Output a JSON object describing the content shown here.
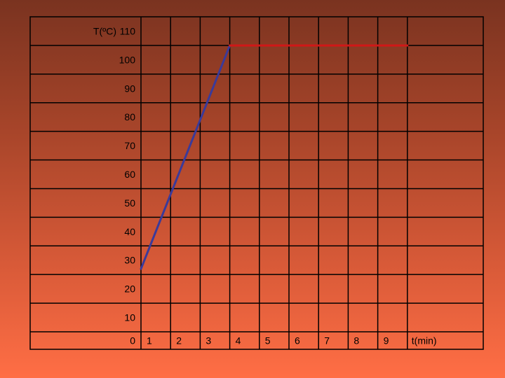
{
  "chart_data": {
    "type": "line",
    "ylabel": "T(ºC)",
    "xlabel": "t(min)",
    "y_ticks": [
      "110",
      "100",
      "90",
      "80",
      "70",
      "60",
      "50",
      "40",
      "30",
      "20",
      "10",
      "0"
    ],
    "x_ticks": [
      "1",
      "2",
      "3",
      "4",
      "5",
      "6",
      "7",
      "8",
      "9"
    ],
    "ylim": [
      0,
      110
    ],
    "xlim": [
      0,
      10
    ],
    "grid": true,
    "series": [
      {
        "color": "#3a3a9a",
        "x": [
          0,
          3
        ],
        "y": [
          22,
          100
        ]
      },
      {
        "color": "#d01818",
        "x": [
          3,
          9
        ],
        "y": [
          100,
          100
        ]
      }
    ]
  }
}
